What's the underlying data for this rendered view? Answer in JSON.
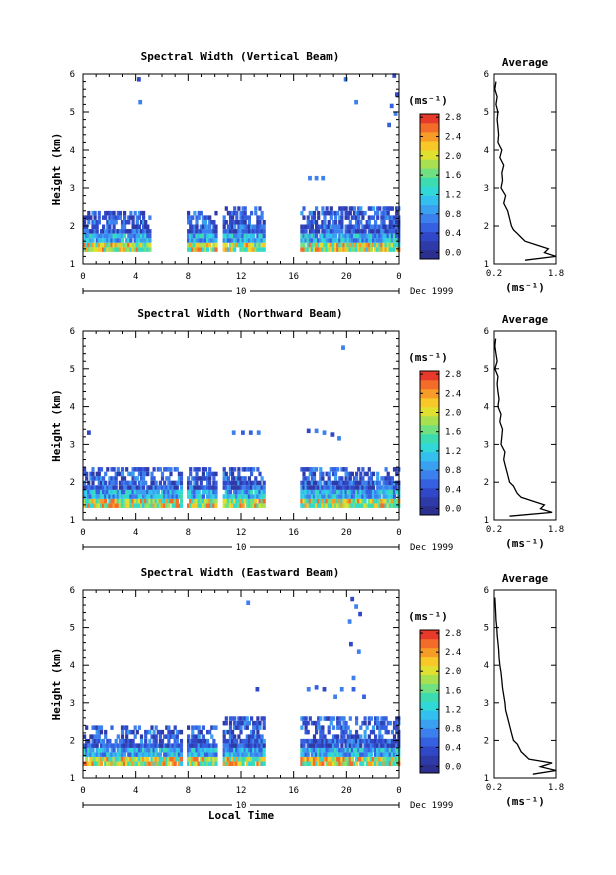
{
  "panels": [
    {
      "title": "Spectral Width (Vertical Beam)",
      "ylabel": "Height (km)",
      "avg_title": "Average",
      "colorbar_unit": "(ms⁻¹)",
      "avg_xlabel": "(ms⁻¹)",
      "date_label": "10",
      "date_suffix": "Dec 1999",
      "xlabel": ""
    },
    {
      "title": "Spectral Width (Northward Beam)",
      "ylabel": "Height (km)",
      "avg_title": "Average",
      "colorbar_unit": "(ms⁻¹)",
      "avg_xlabel": "(ms⁻¹)",
      "date_label": "10",
      "date_suffix": "Dec 1999",
      "xlabel": ""
    },
    {
      "title": "Spectral Width (Eastward Beam)",
      "ylabel": "Height (km)",
      "avg_title": "Average",
      "colorbar_unit": "(ms⁻¹)",
      "avg_xlabel": "(ms⁻¹)",
      "date_label": "10",
      "date_suffix": "Dec 1999",
      "xlabel": "Local Time"
    }
  ],
  "chart_data": [
    {
      "type": "heatmap",
      "title": "Spectral Width (Vertical Beam)",
      "ylabel": "Height (km)",
      "x_ticks": [
        "0",
        "4",
        "8",
        "12",
        "16",
        "20",
        "0"
      ],
      "xlim": [
        0,
        24
      ],
      "y_ticks": [
        "1",
        "2",
        "3",
        "4",
        "5",
        "6"
      ],
      "ylim": [
        1,
        6
      ],
      "colorbar": {
        "unit": "(ms⁻¹)",
        "range": [
          0,
          3.0
        ],
        "ticks": [
          "0.0",
          "0.4",
          "0.8",
          "1.2",
          "1.6",
          "2.0",
          "2.4",
          "2.8"
        ]
      },
      "data_blocks": [
        {
          "t_start": 0.0,
          "t_end": 5.1,
          "h_top": 2.4,
          "dense_top": 1.9
        },
        {
          "t_start": 7.9,
          "t_end": 10.1,
          "h_top": 2.4,
          "dense_top": 1.9
        },
        {
          "t_start": 10.6,
          "t_end": 13.7,
          "h_top": 2.5,
          "dense_top": 2.0
        },
        {
          "t_start": 16.5,
          "t_end": 24.0,
          "h_top": 2.5,
          "dense_top": 2.0
        }
      ],
      "sparse_points": [
        {
          "t": 4.1,
          "h": 5.8
        },
        {
          "t": 4.2,
          "h": 5.2
        },
        {
          "t": 19.8,
          "h": 5.8
        },
        {
          "t": 20.6,
          "h": 5.2
        },
        {
          "t": 23.5,
          "h": 5.9
        },
        {
          "t": 23.7,
          "h": 5.4
        },
        {
          "t": 23.3,
          "h": 5.1
        },
        {
          "t": 23.6,
          "h": 4.9
        },
        {
          "t": 23.1,
          "h": 4.6
        },
        {
          "t": 17.1,
          "h": 3.2
        },
        {
          "t": 17.6,
          "h": 3.2
        },
        {
          "t": 18.1,
          "h": 3.2
        }
      ],
      "average_profile": {
        "title": "Average",
        "xlabel": "(ms⁻¹)",
        "x_ticks": [
          "0.2",
          "1.8"
        ],
        "xlim": [
          0.2,
          1.8
        ],
        "ylim": [
          1,
          6
        ],
        "height": [
          1.1,
          1.2,
          1.3,
          1.4,
          1.5,
          1.6,
          1.7,
          1.8,
          1.9,
          2.0,
          2.2,
          2.4,
          2.6,
          2.8,
          3.0,
          3.2,
          3.4,
          3.6,
          3.8,
          4.0,
          4.2,
          4.4,
          4.6,
          4.8,
          5.0,
          5.2,
          5.4,
          5.6,
          5.8
        ],
        "width": [
          1.0,
          1.8,
          1.5,
          1.6,
          1.3,
          1.0,
          0.9,
          0.8,
          0.7,
          0.65,
          0.6,
          0.55,
          0.45,
          0.5,
          0.38,
          0.42,
          0.4,
          0.45,
          0.35,
          0.4,
          0.3,
          0.32,
          0.3,
          0.28,
          0.3,
          0.25,
          0.28,
          0.22,
          0.25
        ]
      }
    },
    {
      "type": "heatmap",
      "title": "Spectral Width (Northward Beam)",
      "ylabel": "Height (km)",
      "x_ticks": [
        "0",
        "4",
        "8",
        "12",
        "16",
        "20",
        "0"
      ],
      "xlim": [
        0,
        24
      ],
      "y_ticks": [
        "1",
        "2",
        "3",
        "4",
        "5",
        "6"
      ],
      "ylim": [
        1,
        6
      ],
      "colorbar": {
        "unit": "(ms⁻¹)",
        "range": [
          0,
          3.0
        ],
        "ticks": [
          "0.0",
          "0.4",
          "0.8",
          "1.2",
          "1.6",
          "2.0",
          "2.4",
          "2.8"
        ]
      },
      "data_blocks": [
        {
          "t_start": 0.0,
          "t_end": 7.5,
          "h_top": 2.3,
          "dense_top": 1.9
        },
        {
          "t_start": 7.9,
          "t_end": 10.1,
          "h_top": 2.3,
          "dense_top": 1.9
        },
        {
          "t_start": 10.6,
          "t_end": 13.7,
          "h_top": 2.3,
          "dense_top": 2.0
        },
        {
          "t_start": 16.5,
          "t_end": 24.0,
          "h_top": 2.4,
          "dense_top": 2.0
        }
      ],
      "sparse_points": [
        {
          "t": 0.3,
          "h": 3.25
        },
        {
          "t": 11.3,
          "h": 3.25
        },
        {
          "t": 12.0,
          "h": 3.25
        },
        {
          "t": 12.6,
          "h": 3.25
        },
        {
          "t": 13.2,
          "h": 3.25
        },
        {
          "t": 17.0,
          "h": 3.3
        },
        {
          "t": 17.6,
          "h": 3.3
        },
        {
          "t": 18.2,
          "h": 3.25
        },
        {
          "t": 18.8,
          "h": 3.2
        },
        {
          "t": 19.3,
          "h": 3.1
        },
        {
          "t": 19.6,
          "h": 5.5
        }
      ],
      "average_profile": {
        "title": "Average",
        "xlabel": "(ms⁻¹)",
        "x_ticks": [
          "0.2",
          "1.8"
        ],
        "xlim": [
          0.2,
          1.8
        ],
        "ylim": [
          1,
          6
        ],
        "height": [
          1.1,
          1.2,
          1.3,
          1.4,
          1.5,
          1.6,
          1.7,
          1.8,
          1.9,
          2.0,
          2.2,
          2.4,
          2.6,
          2.8,
          3.0,
          3.2,
          3.4,
          3.6,
          3.8,
          4.0,
          4.2,
          4.4,
          4.6,
          4.8,
          5.0,
          5.2,
          5.4,
          5.6,
          5.8
        ],
        "width": [
          0.6,
          1.7,
          1.4,
          1.5,
          1.2,
          0.9,
          0.8,
          0.75,
          0.7,
          0.6,
          0.55,
          0.5,
          0.45,
          0.48,
          0.38,
          0.4,
          0.42,
          0.35,
          0.38,
          0.3,
          0.33,
          0.3,
          0.28,
          0.3,
          0.22,
          0.28,
          0.25,
          0.22,
          0.24
        ]
      }
    },
    {
      "type": "heatmap",
      "title": "Spectral Width (Eastward Beam)",
      "ylabel": "Height (km)",
      "xlabel": "Local Time",
      "x_ticks": [
        "0",
        "4",
        "8",
        "12",
        "16",
        "20",
        "0"
      ],
      "xlim": [
        0,
        24
      ],
      "y_ticks": [
        "1",
        "2",
        "3",
        "4",
        "5",
        "6"
      ],
      "ylim": [
        1,
        6
      ],
      "colorbar": {
        "unit": "(ms⁻¹)",
        "range": [
          0,
          3.0
        ],
        "ticks": [
          "0.0",
          "0.4",
          "0.8",
          "1.2",
          "1.6",
          "2.0",
          "2.4",
          "2.8"
        ]
      },
      "data_blocks": [
        {
          "t_start": 0.0,
          "t_end": 7.5,
          "h_top": 2.3,
          "dense_top": 1.9
        },
        {
          "t_start": 7.9,
          "t_end": 10.1,
          "h_top": 2.3,
          "dense_top": 1.9
        },
        {
          "t_start": 10.6,
          "t_end": 13.7,
          "h_top": 2.6,
          "dense_top": 2.0
        },
        {
          "t_start": 16.5,
          "t_end": 24.0,
          "h_top": 2.6,
          "dense_top": 2.0
        }
      ],
      "sparse_points": [
        {
          "t": 12.4,
          "h": 5.6
        },
        {
          "t": 13.1,
          "h": 3.3
        },
        {
          "t": 17.0,
          "h": 3.3
        },
        {
          "t": 17.6,
          "h": 3.35
        },
        {
          "t": 18.2,
          "h": 3.3
        },
        {
          "t": 19.0,
          "h": 3.1
        },
        {
          "t": 20.4,
          "h": 3.3
        },
        {
          "t": 21.2,
          "h": 3.1
        },
        {
          "t": 19.5,
          "h": 3.3
        },
        {
          "t": 20.3,
          "h": 5.7
        },
        {
          "t": 20.6,
          "h": 5.5
        },
        {
          "t": 20.9,
          "h": 5.3
        },
        {
          "t": 20.1,
          "h": 5.1
        },
        {
          "t": 20.2,
          "h": 4.5
        },
        {
          "t": 20.8,
          "h": 4.3
        },
        {
          "t": 20.4,
          "h": 3.6
        }
      ],
      "average_profile": {
        "title": "Average",
        "xlabel": "(ms⁻¹)",
        "x_ticks": [
          "0.2",
          "1.8"
        ],
        "xlim": [
          0.2,
          1.8
        ],
        "ylim": [
          1,
          6
        ],
        "height": [
          1.1,
          1.2,
          1.3,
          1.4,
          1.5,
          1.6,
          1.7,
          1.8,
          1.9,
          2.0,
          2.2,
          2.4,
          2.6,
          2.8,
          3.0,
          3.2,
          3.4,
          3.6,
          3.8,
          4.0,
          4.2,
          4.4,
          4.6,
          4.8,
          5.0,
          5.2,
          5.4,
          5.6,
          5.8
        ],
        "width": [
          1.2,
          1.8,
          1.4,
          1.7,
          1.1,
          1.0,
          0.9,
          0.85,
          0.8,
          0.7,
          0.65,
          0.6,
          0.55,
          0.5,
          0.48,
          0.45,
          0.42,
          0.4,
          0.38,
          0.35,
          0.33,
          0.32,
          0.3,
          0.28,
          0.27,
          0.25,
          0.24,
          0.23,
          0.22
        ]
      }
    }
  ]
}
